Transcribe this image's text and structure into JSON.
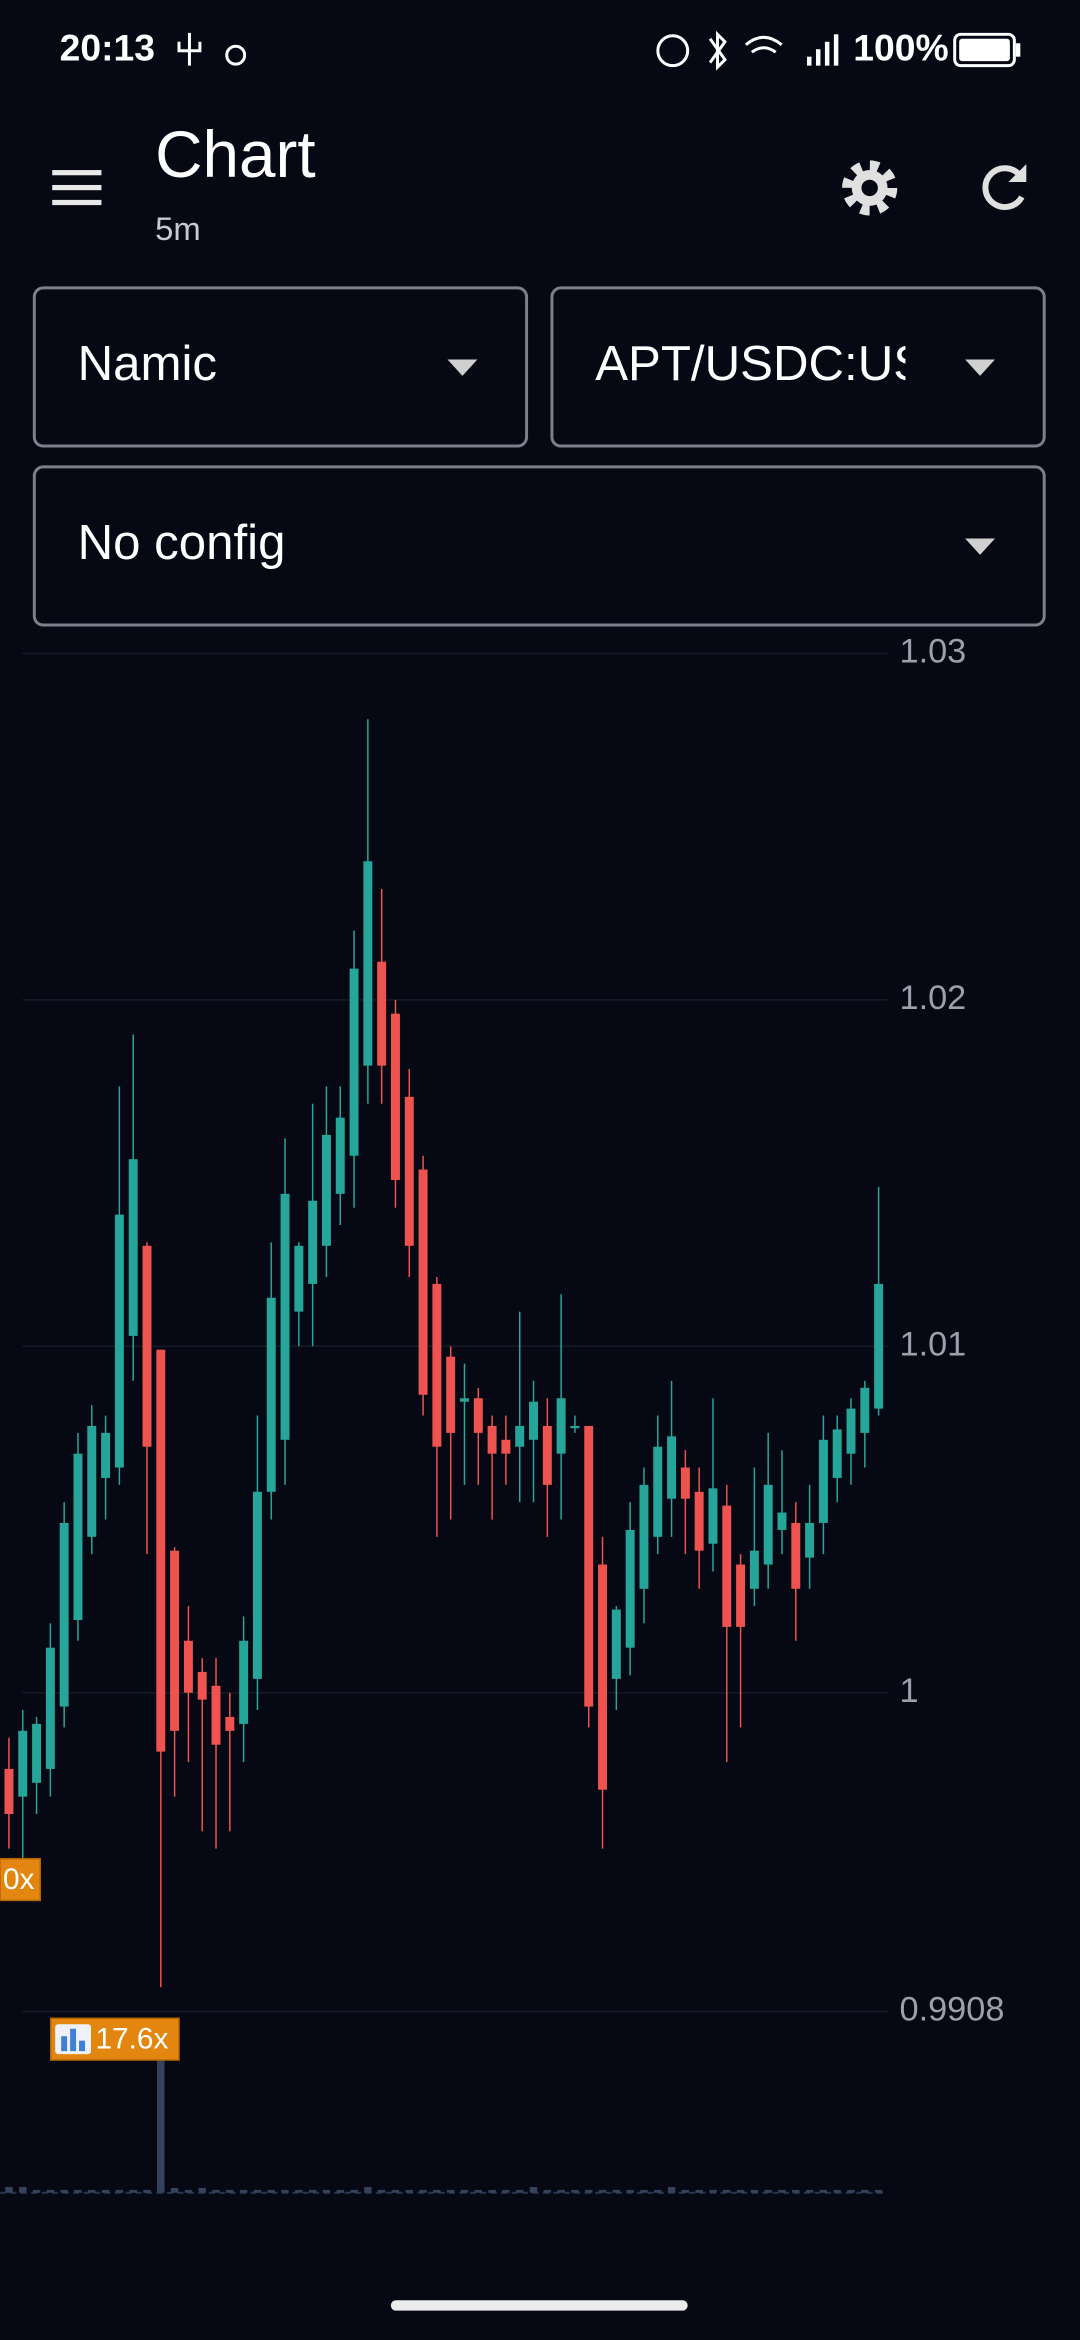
{
  "status_bar": {
    "time": "20:13",
    "battery": "100%"
  },
  "app_bar": {
    "title": "Chart",
    "subtitle": "5m"
  },
  "selectors": {
    "exchange": "Namic",
    "pair": "APT/USDC:USDC",
    "config": "No config"
  },
  "chart_data": {
    "type": "candlestick",
    "up_color": "#26a69a",
    "down_color": "#ef5350",
    "grid": true,
    "ylim": [
      0.99,
      1.03
    ],
    "yticks": [
      1.03,
      1.02,
      1.01,
      1.0,
      0.9908
    ],
    "open": [
      0.9978,
      0.997,
      0.9974,
      0.9978,
      0.9996,
      1.0021,
      1.0045,
      1.0062,
      1.0065,
      1.0103,
      1.0129,
      1.0099,
      1.0041,
      1.0015,
      1.0006,
      1.0002,
      0.9993,
      0.9991,
      1.0004,
      1.0058,
      1.0073,
      1.011,
      1.0118,
      1.0129,
      1.0144,
      1.0155,
      1.0181,
      1.0211,
      1.0196,
      1.0172,
      1.0151,
      1.0118,
      1.0097,
      1.0084,
      1.0085,
      1.0077,
      1.0073,
      1.0071,
      1.0073,
      1.0077,
      1.0069,
      1.0077,
      1.0077,
      1.0037,
      1.0004,
      1.0013,
      1.003,
      1.0045,
      1.0056,
      1.0065,
      1.0058,
      1.0043,
      1.0054,
      1.0037,
      1.003,
      1.0037,
      1.0047,
      1.0049,
      1.0039,
      1.0049,
      1.0062,
      1.0069,
      1.0075,
      1.0082
    ],
    "high": [
      0.9987,
      0.9995,
      0.9993,
      1.002,
      1.0055,
      1.0075,
      1.0083,
      1.008,
      1.0175,
      1.019,
      1.013,
      1.0099,
      1.0042,
      1.0025,
      1.001,
      1.001,
      1.0,
      1.0022,
      1.008,
      1.013,
      1.016,
      1.013,
      1.017,
      1.0175,
      1.0175,
      1.022,
      1.0281,
      1.0232,
      1.02,
      1.018,
      1.0155,
      1.012,
      1.01,
      1.0095,
      1.0088,
      1.008,
      1.008,
      1.011,
      1.009,
      1.0085,
      1.0115,
      1.008,
      1.0077,
      1.0045,
      1.0025,
      1.0055,
      1.0065,
      1.008,
      1.009,
      1.007,
      1.0065,
      1.0085,
      1.006,
      1.004,
      1.0065,
      1.0075,
      1.007,
      1.0055,
      1.006,
      1.008,
      1.008,
      1.0085,
      1.009,
      1.0146
    ],
    "low": [
      0.9955,
      0.9952,
      0.9965,
      0.997,
      0.999,
      1.0015,
      1.004,
      1.005,
      1.006,
      1.009,
      1.004,
      0.9915,
      0.997,
      0.998,
      0.996,
      0.9955,
      0.996,
      0.998,
      0.9995,
      1.005,
      1.006,
      1.01,
      1.01,
      1.012,
      1.0135,
      1.014,
      1.017,
      1.017,
      1.014,
      1.012,
      1.008,
      1.0045,
      1.005,
      1.006,
      1.006,
      1.005,
      1.006,
      1.0055,
      1.0055,
      1.0045,
      1.005,
      1.0075,
      0.999,
      0.9955,
      0.9995,
      1.0005,
      1.002,
      1.004,
      1.0045,
      1.004,
      1.003,
      1.0035,
      0.998,
      0.999,
      1.0025,
      1.003,
      1.004,
      1.0015,
      1.003,
      1.004,
      1.0055,
      1.006,
      1.0065,
      1.008
    ],
    "close": [
      0.9965,
      0.9989,
      0.9991,
      1.0013,
      1.0049,
      1.0069,
      1.0077,
      1.0075,
      1.0138,
      1.0154,
      1.0071,
      0.9983,
      0.9989,
      1.0,
      0.9998,
      0.9985,
      0.9989,
      1.0015,
      1.0058,
      1.0114,
      1.0144,
      1.0129,
      1.0142,
      1.0161,
      1.0166,
      1.0209,
      1.024,
      1.0181,
      1.0148,
      1.0129,
      1.0086,
      1.0071,
      1.0075,
      1.0085,
      1.0075,
      1.0069,
      1.0069,
      1.0077,
      1.0084,
      1.006,
      1.0085,
      1.0077,
      0.9996,
      0.9972,
      1.0024,
      1.0047,
      1.006,
      1.0071,
      1.0074,
      1.0056,
      1.0041,
      1.0059,
      1.0019,
      1.0019,
      1.0041,
      1.006,
      1.0052,
      1.003,
      1.0049,
      1.0073,
      1.0076,
      1.0082,
      1.0088,
      1.0118
    ],
    "volume": [
      0.6,
      0.6,
      0.3,
      0.3,
      0.3,
      0.3,
      0.3,
      0.3,
      0.3,
      0.3,
      0.3,
      17.6,
      0.5,
      0.3,
      0.5,
      0.3,
      0.3,
      0.3,
      0.3,
      0.3,
      0.3,
      0.3,
      0.3,
      0.3,
      0.3,
      0.3,
      0.6,
      0.3,
      0.3,
      0.3,
      0.3,
      0.3,
      0.3,
      0.3,
      0.3,
      0.3,
      0.3,
      0.3,
      0.6,
      0.3,
      0.3,
      0.3,
      0.3,
      0.3,
      0.3,
      0.3,
      0.3,
      0.3,
      0.6,
      0.3,
      0.3,
      0.3,
      0.3,
      0.3,
      0.3,
      0.3,
      0.3,
      0.3,
      0.3,
      0.3,
      0.3,
      0.3,
      0.3,
      0.3
    ],
    "annotations": [
      "0x",
      "17.6x"
    ]
  }
}
